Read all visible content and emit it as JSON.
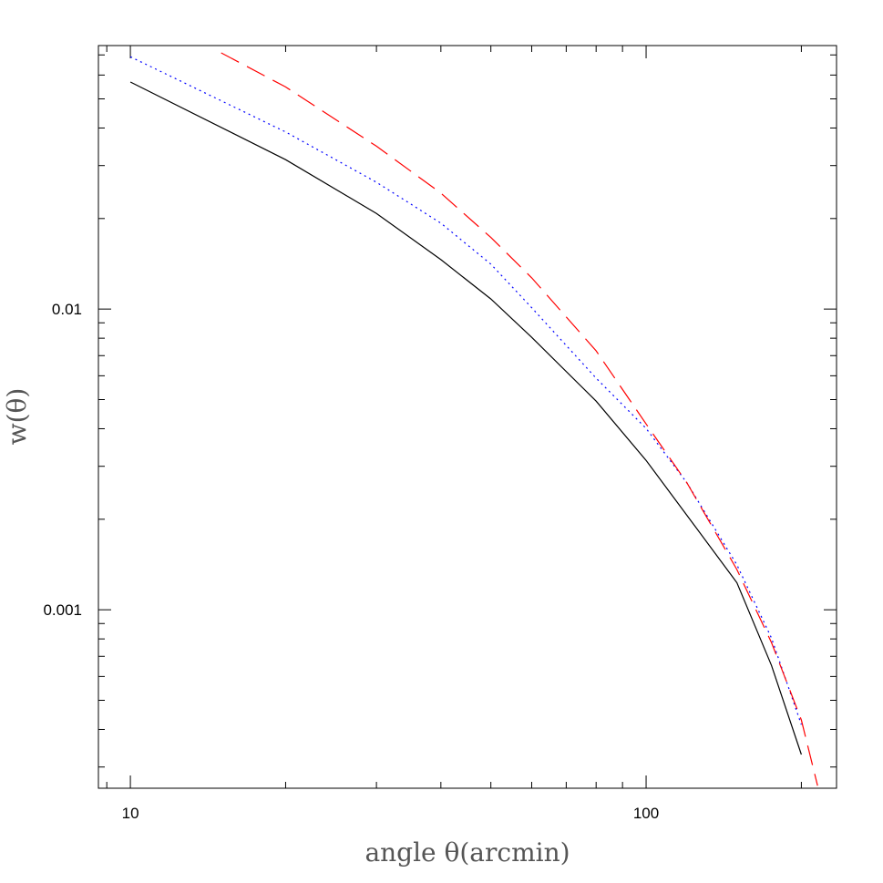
{
  "chart_data": {
    "type": "line",
    "xlabel": "angle θ(arcmin)",
    "ylabel": "w(θ)",
    "xscale": "log",
    "yscale": "log",
    "xlim": [
      8.67,
      234
    ],
    "ylim": [
      0.000255,
      0.0752
    ],
    "xticks": [
      10,
      100
    ],
    "yticks": [
      0.001,
      0.01
    ],
    "xticks_minor": [
      9,
      20,
      30,
      40,
      50,
      60,
      70,
      80,
      90,
      200
    ],
    "yticks_minor": [
      0.0003,
      0.0004,
      0.0005,
      0.0006,
      0.0007,
      0.0008,
      0.0009,
      0.002,
      0.003,
      0.004,
      0.005,
      0.006,
      0.007,
      0.008,
      0.009,
      0.02,
      0.03,
      0.04,
      0.05,
      0.06,
      0.07
    ],
    "series": [
      {
        "color": "#000000",
        "dash": "solid",
        "x": [
          10,
          20,
          30,
          40,
          50,
          60,
          80,
          100,
          120,
          150,
          175,
          200
        ],
        "values": [
          0.0569,
          0.0314,
          0.0208,
          0.0146,
          0.0108,
          0.00805,
          0.00494,
          0.00314,
          0.00206,
          0.00123,
          0.000653,
          0.00033
        ]
      },
      {
        "color": "#0000ff",
        "dash": "dotted",
        "x": [
          10,
          20,
          30,
          40,
          50,
          60,
          80,
          100,
          120,
          150,
          175,
          200
        ],
        "values": [
          0.069,
          0.0388,
          0.0264,
          0.0193,
          0.0141,
          0.0101,
          0.00589,
          0.00401,
          0.00264,
          0.00141,
          0.000805,
          0.000415
        ]
      },
      {
        "color": "#ff0000",
        "dash": "dashed",
        "x": [
          15,
          20,
          30,
          40,
          50,
          60,
          80,
          100,
          120,
          150,
          175,
          200,
          215
        ],
        "values": [
          0.0711,
          0.0548,
          0.0348,
          0.0243,
          0.0173,
          0.0127,
          0.00726,
          0.00415,
          0.00264,
          0.00136,
          0.000778,
          0.00043,
          0.00026
        ]
      }
    ]
  }
}
